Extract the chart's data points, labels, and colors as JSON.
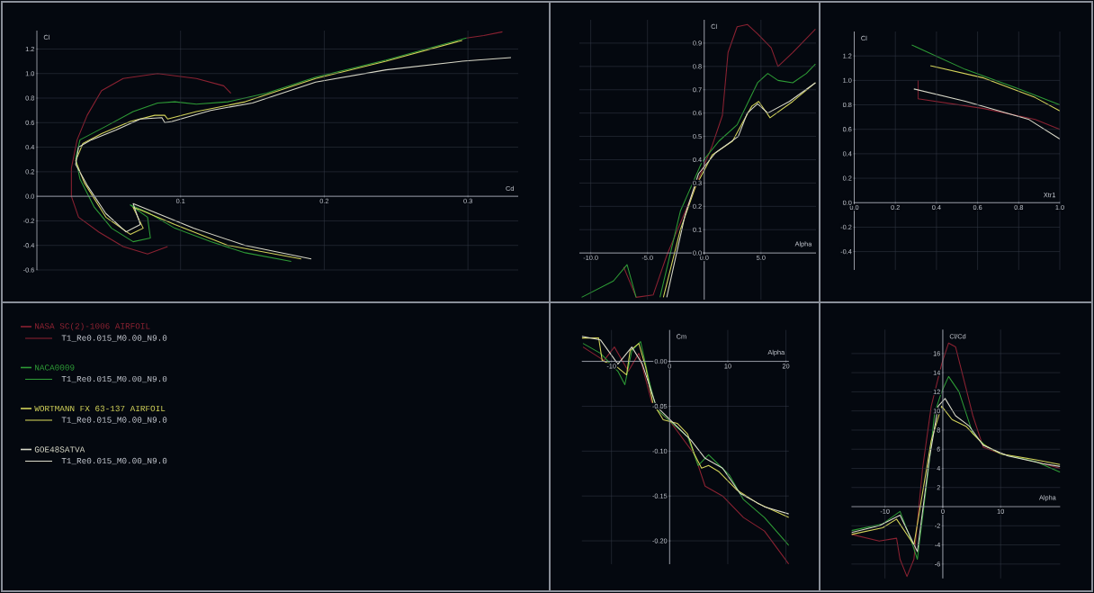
{
  "chart_data": [
    {
      "type": "line",
      "xlabel": "Cd",
      "ylabel": "Cl",
      "xlim": [
        0,
        0.335
      ],
      "ylim": [
        -0.6,
        1.35
      ],
      "xticks": [
        0.1,
        0.2,
        0.3
      ],
      "yticks": [
        -0.6,
        -0.4,
        -0.2,
        {
          "value": 0,
          "label": "0.0"
        },
        0.2,
        0.4,
        0.6,
        0.8,
        {
          "value": 1,
          "label": "1.0"
        },
        1.2
      ],
      "grid": true,
      "legend": "bottom",
      "annotations": [
        "T1_Re0.015_M0.00_N9.0",
        "T1_Re0.015_M0.00_N9.0",
        "T1_Re0.015_M0.00_N9.0",
        "T1_Re0.015_M0.00_N9.0"
      ],
      "series": [
        {
          "name": "NASA SC(2)-1006 AIRFOIL",
          "color": "#8b2232",
          "x": [
            0.091,
            0.077,
            0.06,
            0.043,
            0.029,
            0.024,
            0.024,
            0.028,
            0.035,
            0.045,
            0.06,
            0.084,
            0.111,
            0.13,
            0.135,
            null,
            0.299,
            0.311,
            0.324
          ],
          "values": [
            -0.41,
            -0.47,
            -0.41,
            -0.29,
            -0.17,
            0.0,
            0.23,
            0.46,
            0.66,
            0.86,
            0.96,
            1.0,
            0.96,
            0.9,
            0.84,
            null,
            1.29,
            1.31,
            1.34
          ]
        },
        {
          "name": "NACA0009",
          "color": "#2e9b36",
          "x": [
            0.177,
            0.145,
            0.121,
            0.096,
            0.077,
            0.065,
            0.077,
            0.079,
            0.067,
            0.052,
            0.04,
            0.03,
            0.027,
            0.03,
            0.048,
            0.067,
            0.084,
            0.096,
            0.111,
            0.133,
            0.16,
            0.194,
            0.243,
            0.299
          ],
          "values": [
            -0.53,
            -0.46,
            -0.37,
            -0.26,
            -0.13,
            -0.07,
            -0.17,
            -0.34,
            -0.37,
            -0.26,
            -0.09,
            0.14,
            0.31,
            0.46,
            0.57,
            0.69,
            0.76,
            0.77,
            0.75,
            0.77,
            0.84,
            0.97,
            1.11,
            1.29
          ]
        },
        {
          "name": "WORTMANN FX 63-137 AIRFOIL",
          "color": "#d4d45a",
          "x": [
            0.184,
            0.133,
            0.096,
            0.072,
            0.067,
            0.074,
            0.065,
            0.048,
            0.033,
            0.027,
            0.032,
            0.045,
            0.065,
            0.082,
            0.089,
            0.091,
            0.111,
            0.145,
            0.194,
            0.243,
            0.296
          ],
          "values": [
            -0.51,
            -0.4,
            -0.23,
            -0.11,
            -0.09,
            -0.26,
            -0.31,
            -0.17,
            0.11,
            0.29,
            0.43,
            0.51,
            0.61,
            0.66,
            0.66,
            0.63,
            0.69,
            0.77,
            0.96,
            1.1,
            1.27
          ]
        },
        {
          "name": "GOE48SATVA",
          "color": "#d8d8c8",
          "x": [
            0.191,
            0.145,
            0.109,
            0.084,
            0.067,
            0.072,
            0.062,
            0.048,
            0.035,
            0.027,
            0.029,
            0.038,
            0.055,
            0.072,
            0.087,
            0.089,
            0.094,
            0.121,
            0.15,
            0.194,
            0.243,
            0.296,
            0.33
          ],
          "values": [
            -0.51,
            -0.4,
            -0.26,
            -0.14,
            -0.06,
            -0.23,
            -0.29,
            -0.14,
            0.09,
            0.26,
            0.4,
            0.46,
            0.54,
            0.63,
            0.64,
            0.6,
            0.61,
            0.7,
            0.76,
            0.93,
            1.03,
            1.1,
            1.13
          ]
        }
      ]
    },
    {
      "type": "line",
      "xlabel": "Alpha",
      "ylabel": "Cl",
      "xlim": [
        -11,
        9.85
      ],
      "ylim": [
        -0.2,
        1.0
      ],
      "xticks": [
        {
          "value": -10,
          "label": "-10.0"
        },
        {
          "value": -5,
          "label": "-5.0"
        },
        {
          "value": 0,
          "label": "0.0"
        },
        {
          "value": 5,
          "label": "5.0"
        }
      ],
      "yticks": [
        {
          "value": 0,
          "label": "0.0"
        },
        0.1,
        0.2,
        0.3,
        0.4,
        0.5,
        0.6,
        0.7,
        0.8,
        0.9
      ],
      "grid": true,
      "series": [
        {
          "color": "#8b2232",
          "x": [
            -7.1,
            -6.0,
            -4.5,
            -3.3,
            -1.4,
            0.7,
            1.6,
            2.1,
            2.9,
            3.8,
            4.7,
            5.9,
            6.5,
            7.8,
            9.8
          ],
          "values": [
            -0.06,
            -0.19,
            -0.18,
            -0.01,
            0.21,
            0.46,
            0.59,
            0.86,
            0.97,
            0.98,
            0.94,
            0.88,
            0.8,
            0.86,
            0.96
          ]
        },
        {
          "color": "#2e9b36",
          "x": [
            -10.8,
            -8.0,
            -6.8,
            -6.0,
            null,
            -3.9,
            -2.1,
            -0.2,
            1.3,
            2.9,
            3.9,
            4.7,
            5.6,
            6.5,
            7.8,
            9.0,
            9.8
          ],
          "values": [
            -0.19,
            -0.12,
            -0.05,
            -0.19,
            null,
            -0.19,
            0.18,
            0.39,
            0.48,
            0.55,
            0.65,
            0.73,
            0.77,
            0.74,
            0.73,
            0.77,
            0.81
          ]
        },
        {
          "color": "#d4d45a",
          "x": [
            -3.6,
            -2.1,
            -0.8,
            0.7,
            2.5,
            3.5,
            4.2,
            4.8,
            5.8,
            7.8,
            9.8
          ],
          "values": [
            -0.19,
            0.1,
            0.28,
            0.42,
            0.48,
            0.57,
            0.63,
            0.65,
            0.58,
            0.65,
            0.73
          ]
        },
        {
          "color": "#d8d8c8",
          "x": [
            -3.3,
            -1.7,
            -0.5,
            1.0,
            3.0,
            3.8,
            4.7,
            5.6,
            7.5,
            9.8
          ],
          "values": [
            -0.19,
            0.16,
            0.34,
            0.43,
            0.5,
            0.6,
            0.64,
            0.6,
            0.65,
            0.73
          ]
        }
      ]
    },
    {
      "type": "line",
      "xlabel": "Xtr1",
      "ylabel": "Cl",
      "xlim": [
        0,
        1
      ],
      "ylim": [
        -0.55,
        1.4
      ],
      "xticks": [
        {
          "value": 0,
          "label": "0.0"
        },
        0.2,
        0.4,
        0.6,
        0.8,
        {
          "value": 1,
          "label": "1.0"
        }
      ],
      "yticks": [
        -0.4,
        -0.2,
        {
          "value": 0,
          "label": "0.0"
        },
        0.2,
        0.4,
        0.6,
        0.8,
        {
          "value": 1,
          "label": "1.0"
        },
        1.2
      ],
      "grid": true,
      "series": [
        {
          "color": "#8b2232",
          "x": [
            0.31,
            0.31,
            0.63,
            0.88,
            1.0
          ],
          "values": [
            1.0,
            0.85,
            0.77,
            0.68,
            0.6
          ]
        },
        {
          "color": "#2e9b36",
          "x": [
            0.28,
            0.54,
            0.8,
            1.0
          ],
          "values": [
            1.29,
            1.09,
            0.93,
            0.8
          ]
        },
        {
          "color": "#d4d45a",
          "x": [
            0.37,
            0.63,
            0.88,
            1.0
          ],
          "values": [
            1.12,
            1.02,
            0.86,
            0.75
          ]
        },
        {
          "color": "#d8d8c8",
          "x": [
            0.29,
            0.54,
            0.85,
            1.0
          ],
          "values": [
            0.93,
            0.83,
            0.68,
            0.52
          ]
        }
      ]
    },
    {
      "type": "line",
      "xlabel": "Alpha",
      "ylabel": "Cm",
      "xlim": [
        -15.1,
        20.5
      ],
      "ylim": [
        -0.226,
        0.035
      ],
      "xticks": [
        -10,
        0,
        10,
        20
      ],
      "yticks": [
        {
          "value": 0,
          "label": "0.00"
        },
        {
          "value": -0.05,
          "label": "-0.05"
        },
        {
          "value": -0.1,
          "label": "-0.10"
        },
        {
          "value": -0.15,
          "label": "-0.15"
        },
        {
          "value": -0.2,
          "label": "-0.20"
        }
      ],
      "grid": true,
      "series": [
        {
          "color": "#8b2232",
          "x": [
            -14.9,
            -11.3,
            -9.5,
            -7.1,
            -5.3,
            -2.9,
            0.1,
            4.3,
            6.1,
            9.1,
            12.7,
            16.3,
            20.5
          ],
          "values": [
            0.016,
            0.001,
            0.016,
            -0.011,
            0.009,
            -0.05,
            -0.067,
            -0.104,
            -0.139,
            -0.15,
            -0.174,
            -0.189,
            -0.226
          ]
        },
        {
          "color": "#2e9b36",
          "x": [
            -14.9,
            -11.9,
            -8.9,
            -7.7,
            -6.5,
            -5.0,
            -3.5,
            -2.3,
            0.1,
            3.1,
            4.9,
            6.7,
            10.3,
            12.7,
            16.3,
            20.5
          ],
          "values": [
            0.02,
            0.009,
            -0.011,
            -0.026,
            0.012,
            0.022,
            -0.022,
            -0.053,
            -0.067,
            -0.084,
            -0.116,
            -0.104,
            -0.127,
            -0.154,
            -0.174,
            -0.205
          ]
        },
        {
          "color": "#d4d45a",
          "x": [
            -15.1,
            -12.2,
            -11.6,
            -8.9,
            -7.4,
            -6.8,
            -5.3,
            -4.1,
            -2.9,
            -1.1,
            1.3,
            3.1,
            4.3,
            5.5,
            6.7,
            8.5,
            11.5,
            15.1,
            20.5
          ],
          "values": [
            0.026,
            0.026,
            0.001,
            -0.007,
            -0.015,
            0.012,
            0.02,
            -0.007,
            -0.046,
            -0.065,
            -0.069,
            -0.081,
            -0.104,
            -0.119,
            -0.116,
            -0.123,
            -0.143,
            -0.158,
            -0.174
          ]
        },
        {
          "color": "#d8d8c8",
          "x": [
            -15.1,
            -11.9,
            -8.9,
            -6.5,
            -4.7,
            -2.3,
            0.7,
            3.7,
            6.1,
            9.1,
            12.1,
            16.3,
            20.5
          ],
          "values": [
            0.028,
            0.024,
            -0.003,
            0.016,
            -0.003,
            -0.05,
            -0.069,
            -0.088,
            -0.108,
            -0.119,
            -0.147,
            -0.162,
            -0.17
          ]
        }
      ]
    },
    {
      "type": "line",
      "xlabel": "Alpha",
      "ylabel": "Cl/Cd",
      "xlim": [
        -15.8,
        20.3
      ],
      "ylim": [
        -7.5,
        18.5
      ],
      "xticks": [
        -10,
        0,
        10
      ],
      "yticks": [
        -6,
        -4,
        -2,
        2,
        4,
        6,
        8,
        10,
        12,
        14,
        16
      ],
      "grid": true,
      "series": [
        {
          "color": "#8b2232",
          "x": [
            -15.8,
            -11.0,
            -8.0,
            -7.4,
            -6.2,
            -5.0,
            -3.5,
            -2.0,
            -0.2,
            1.0,
            2.2,
            4.0,
            5.2,
            7.0,
            10.1,
            16.1,
            20.3
          ],
          "values": [
            -2.9,
            -3.6,
            -3.3,
            -5.5,
            -7.3,
            -5.5,
            4.0,
            10.5,
            14.9,
            17.1,
            16.7,
            12.4,
            9.5,
            6.2,
            5.5,
            4.7,
            4.0
          ]
        },
        {
          "color": "#2e9b36",
          "x": [
            -15.8,
            -10.4,
            -7.4,
            -5.6,
            -4.4,
            -2.6,
            -1.4,
            -0.2,
            1.0,
            2.8,
            5.2,
            7.7,
            10.1,
            16.1,
            20.3
          ],
          "values": [
            -2.5,
            -1.8,
            -0.5,
            -3.3,
            -5.5,
            3.3,
            9.8,
            12.0,
            13.6,
            12.0,
            7.6,
            6.2,
            5.5,
            4.7,
            3.6
          ]
        },
        {
          "color": "#d4d45a",
          "x": [
            -15.8,
            -10.4,
            -8.0,
            -5.0,
            -2.0,
            -0.2,
            1.6,
            4.0,
            7.0,
            10.1,
            16.1,
            20.3
          ],
          "values": [
            -2.9,
            -2.2,
            -1.3,
            -4.0,
            6.9,
            10.5,
            9.1,
            8.4,
            6.5,
            5.5,
            4.9,
            4.4
          ]
        },
        {
          "color": "#d8d8c8",
          "x": [
            -15.8,
            -11.0,
            -7.4,
            -4.4,
            -2.3,
            -0.8,
            0.4,
            2.2,
            4.6,
            7.0,
            11.3,
            17.3,
            20.3
          ],
          "values": [
            -2.7,
            -2.0,
            -0.9,
            -4.7,
            5.1,
            10.5,
            11.3,
            9.5,
            8.4,
            6.4,
            5.3,
            4.5,
            4.2
          ]
        }
      ]
    }
  ]
}
